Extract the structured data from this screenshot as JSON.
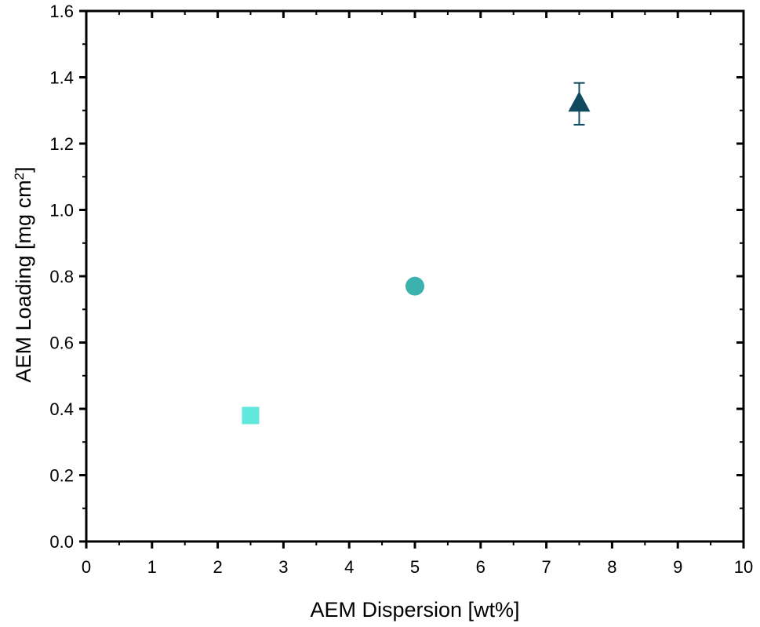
{
  "chart_data": {
    "type": "scatter",
    "title": "",
    "xlabel": "AEM Dispersion [wt%]",
    "ylabel": {
      "prefix": "AEM Loading [mg cm",
      "superscript": "2",
      "suffix": "]"
    },
    "xlim": [
      0,
      10
    ],
    "ylim": [
      0,
      1.6
    ],
    "x_ticks": [
      "0",
      "1",
      "2",
      "3",
      "4",
      "5",
      "6",
      "7",
      "8",
      "9",
      "10"
    ],
    "y_ticks": [
      "0.0",
      "0.2",
      "0.4",
      "0.6",
      "0.8",
      "1.0",
      "1.2",
      "1.4",
      "1.6"
    ],
    "grid": false,
    "legend": "none",
    "points": [
      {
        "x": 2.5,
        "y": 0.38,
        "marker": "square",
        "color": "#5FE8DC",
        "error": 0
      },
      {
        "x": 5.0,
        "y": 0.77,
        "marker": "circle",
        "color": "#3BB2AD",
        "error": 0
      },
      {
        "x": 7.5,
        "y": 1.32,
        "marker": "triangle",
        "color": "#0F4A5E",
        "error": 0.063
      }
    ]
  }
}
